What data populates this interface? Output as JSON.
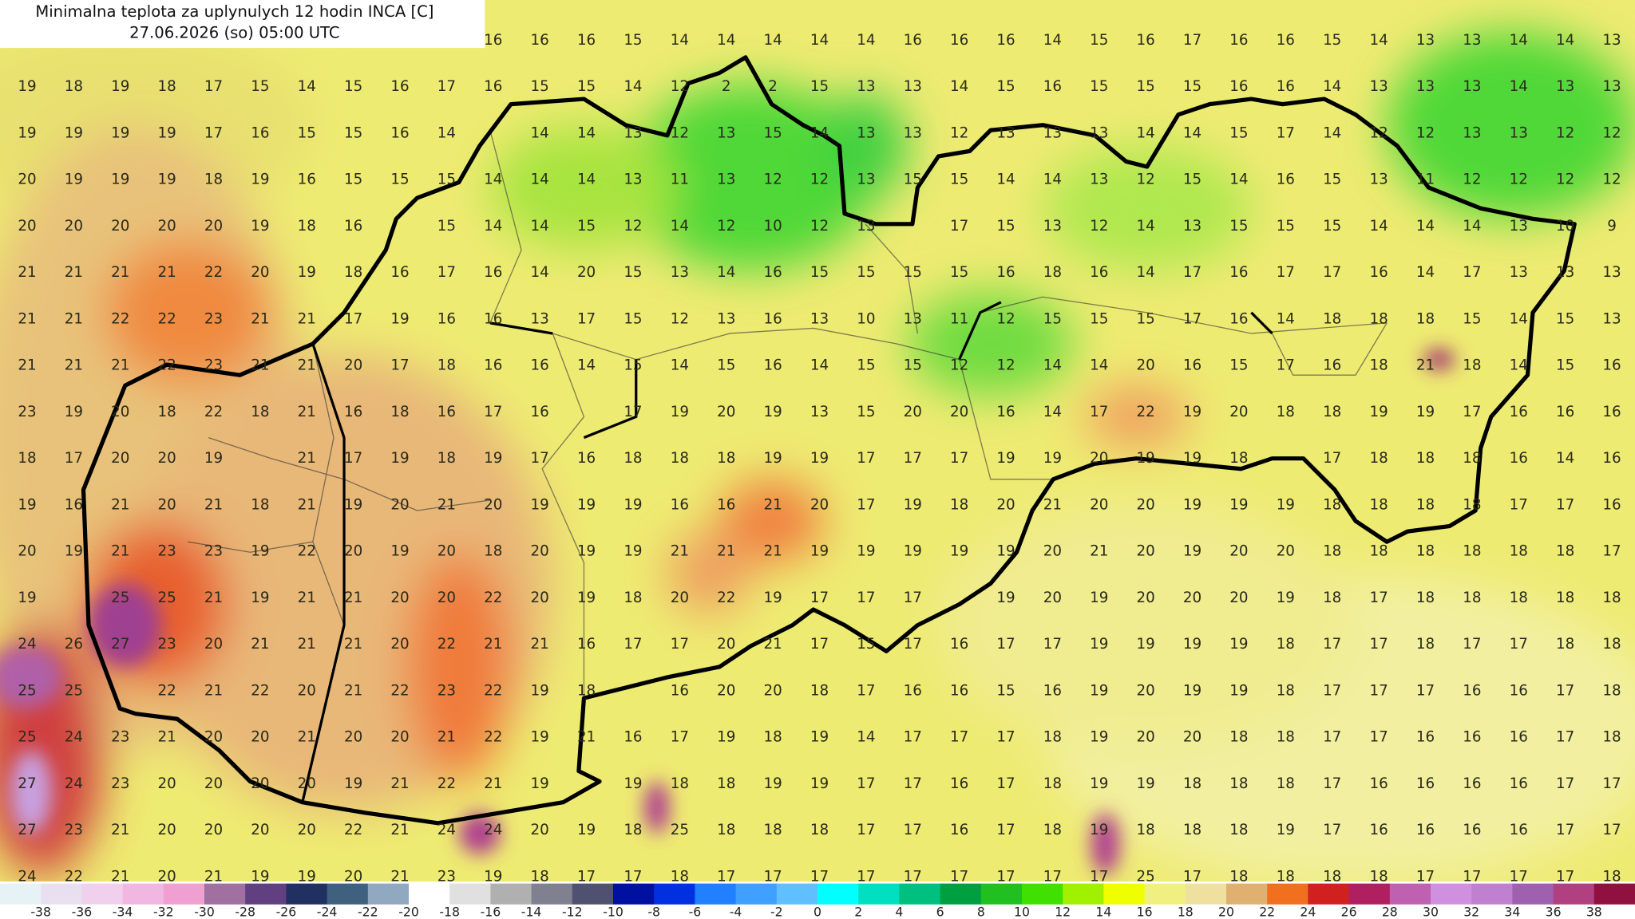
{
  "header": {
    "title": "Minimalna teplota za uplynulych 12 hodin INCA [C]",
    "subtitle": "27.06.2026 (so) 05:00 UTC"
  },
  "grid": {
    "rows": [
      [
        null,
        null,
        null,
        null,
        null,
        null,
        null,
        null,
        null,
        null,
        16,
        16,
        16,
        15,
        14,
        14,
        14,
        14,
        14,
        16,
        16,
        16,
        14,
        15,
        16,
        17,
        16,
        16,
        15,
        14,
        13,
        13,
        14,
        14,
        13
      ],
      [
        19,
        18,
        19,
        18,
        17,
        15,
        14,
        15,
        16,
        17,
        16,
        15,
        15,
        14,
        12,
        2,
        2,
        15,
        13,
        13,
        14,
        15,
        16,
        15,
        15,
        15,
        16,
        16,
        14,
        13,
        13,
        13,
        14,
        13,
        13
      ],
      [
        19,
        19,
        19,
        19,
        17,
        16,
        15,
        15,
        16,
        14,
        null,
        14,
        14,
        13,
        12,
        13,
        15,
        14,
        13,
        13,
        12,
        13,
        13,
        13,
        14,
        14,
        15,
        17,
        14,
        12,
        12,
        13,
        13,
        12,
        12
      ],
      [
        20,
        19,
        19,
        19,
        18,
        19,
        16,
        15,
        15,
        15,
        14,
        14,
        14,
        13,
        11,
        13,
        12,
        12,
        13,
        15,
        15,
        14,
        14,
        13,
        12,
        15,
        14,
        16,
        15,
        13,
        11,
        12,
        12,
        12,
        12
      ],
      [
        20,
        20,
        20,
        20,
        20,
        19,
        18,
        16,
        null,
        15,
        14,
        14,
        15,
        12,
        14,
        12,
        10,
        12,
        13,
        null,
        17,
        15,
        13,
        12,
        14,
        13,
        15,
        15,
        15,
        14,
        14,
        14,
        13,
        10,
        9
      ],
      [
        21,
        21,
        21,
        21,
        22,
        20,
        19,
        18,
        16,
        17,
        16,
        14,
        20,
        15,
        13,
        14,
        16,
        15,
        15,
        15,
        15,
        16,
        18,
        16,
        14,
        17,
        16,
        17,
        17,
        16,
        14,
        17,
        13,
        13,
        13
      ],
      [
        21,
        21,
        22,
        22,
        23,
        21,
        21,
        17,
        19,
        16,
        16,
        13,
        17,
        15,
        12,
        13,
        16,
        13,
        10,
        13,
        11,
        12,
        15,
        15,
        15,
        17,
        16,
        14,
        18,
        18,
        18,
        15,
        14,
        15,
        13
      ],
      [
        21,
        21,
        21,
        22,
        23,
        21,
        21,
        20,
        17,
        18,
        16,
        16,
        14,
        15,
        14,
        15,
        16,
        14,
        15,
        15,
        12,
        12,
        14,
        14,
        20,
        16,
        15,
        17,
        16,
        18,
        21,
        18,
        14,
        15,
        16
      ],
      [
        23,
        19,
        20,
        18,
        22,
        18,
        21,
        16,
        18,
        16,
        17,
        16,
        null,
        17,
        19,
        20,
        19,
        13,
        15,
        20,
        20,
        16,
        14,
        17,
        22,
        19,
        20,
        18,
        18,
        19,
        19,
        17,
        16,
        16,
        16
      ],
      [
        18,
        17,
        20,
        20,
        19,
        null,
        21,
        17,
        19,
        18,
        19,
        17,
        16,
        18,
        18,
        18,
        19,
        19,
        17,
        17,
        17,
        19,
        19,
        20,
        19,
        19,
        18,
        null,
        17,
        18,
        18,
        18,
        16,
        14,
        16
      ],
      [
        19,
        16,
        21,
        20,
        21,
        18,
        21,
        19,
        20,
        21,
        20,
        19,
        19,
        19,
        16,
        16,
        21,
        20,
        17,
        19,
        18,
        20,
        21,
        20,
        20,
        19,
        19,
        19,
        18,
        18,
        18,
        18,
        17,
        17,
        16
      ],
      [
        20,
        19,
        21,
        23,
        23,
        19,
        22,
        20,
        19,
        20,
        18,
        20,
        19,
        19,
        21,
        21,
        21,
        19,
        19,
        19,
        19,
        19,
        20,
        21,
        20,
        19,
        20,
        20,
        18,
        18,
        18,
        18,
        18,
        18,
        17
      ],
      [
        19,
        null,
        25,
        25,
        21,
        19,
        21,
        21,
        20,
        20,
        22,
        20,
        19,
        18,
        20,
        22,
        19,
        17,
        17,
        17,
        null,
        19,
        20,
        19,
        20,
        20,
        20,
        19,
        18,
        17,
        18,
        18,
        18,
        18,
        18
      ],
      [
        24,
        26,
        27,
        23,
        20,
        21,
        21,
        21,
        20,
        22,
        21,
        21,
        16,
        17,
        17,
        20,
        21,
        17,
        15,
        17,
        16,
        17,
        17,
        19,
        19,
        19,
        19,
        18,
        17,
        17,
        18,
        17,
        17,
        18,
        18
      ],
      [
        25,
        25,
        null,
        22,
        21,
        22,
        20,
        21,
        22,
        23,
        22,
        19,
        18,
        null,
        16,
        20,
        20,
        18,
        17,
        16,
        16,
        15,
        16,
        19,
        20,
        19,
        19,
        18,
        17,
        17,
        17,
        16,
        16,
        17,
        18
      ],
      [
        25,
        24,
        23,
        21,
        20,
        20,
        21,
        20,
        20,
        21,
        22,
        19,
        21,
        16,
        17,
        19,
        18,
        19,
        14,
        17,
        17,
        17,
        18,
        19,
        20,
        20,
        18,
        18,
        17,
        17,
        16,
        16,
        16,
        17,
        18
      ],
      [
        27,
        24,
        23,
        20,
        20,
        20,
        20,
        19,
        21,
        22,
        21,
        19,
        null,
        19,
        18,
        18,
        19,
        19,
        17,
        17,
        16,
        17,
        18,
        19,
        19,
        18,
        18,
        18,
        17,
        16,
        16,
        16,
        16,
        17,
        17
      ],
      [
        27,
        23,
        21,
        20,
        20,
        20,
        20,
        22,
        21,
        24,
        24,
        20,
        19,
        18,
        25,
        18,
        18,
        18,
        17,
        17,
        16,
        17,
        18,
        19,
        18,
        18,
        18,
        19,
        17,
        16,
        16,
        16,
        16,
        17,
        17
      ],
      [
        24,
        22,
        21,
        20,
        21,
        19,
        19,
        20,
        21,
        23,
        19,
        18,
        17,
        17,
        18,
        17,
        17,
        17,
        17,
        17,
        17,
        17,
        17,
        17,
        25,
        17,
        18,
        18,
        18,
        18,
        17,
        17,
        17,
        17,
        18
      ]
    ]
  },
  "colorbar": {
    "labels": [
      -38,
      -36,
      -34,
      -32,
      -30,
      -28,
      -26,
      -24,
      -22,
      -20,
      -18,
      -16,
      -14,
      -12,
      -10,
      -8,
      -6,
      -4,
      -2,
      0,
      2,
      4,
      6,
      8,
      10,
      12,
      14,
      16,
      18,
      20,
      22,
      24,
      26,
      28,
      30,
      32,
      34,
      36,
      38
    ],
    "colors": [
      "#e6f2f6",
      "#e8e0f0",
      "#f0d0ec",
      "#f0b8e0",
      "#f0a0d0",
      "#a070a0",
      "#604080",
      "#203060",
      "#406080",
      "#90a8c0",
      "#ffffff",
      "#e0e0e0",
      "#b0b0b0",
      "#808090",
      "#505070",
      "#0010a0",
      "#0030e0",
      "#2080ff",
      "#40a0ff",
      "#60c0ff",
      "#00ffff",
      "#00e0c0",
      "#00c080",
      "#00a040",
      "#20c020",
      "#40e000",
      "#a0f000",
      "#f0ff00",
      "#f0f080",
      "#f0e0a0",
      "#e0b070",
      "#f07020",
      "#d02020",
      "#b02060",
      "#c060b0",
      "#d090e0",
      "#c080d0",
      "#a060b0",
      "#b04080",
      "#901040"
    ]
  }
}
